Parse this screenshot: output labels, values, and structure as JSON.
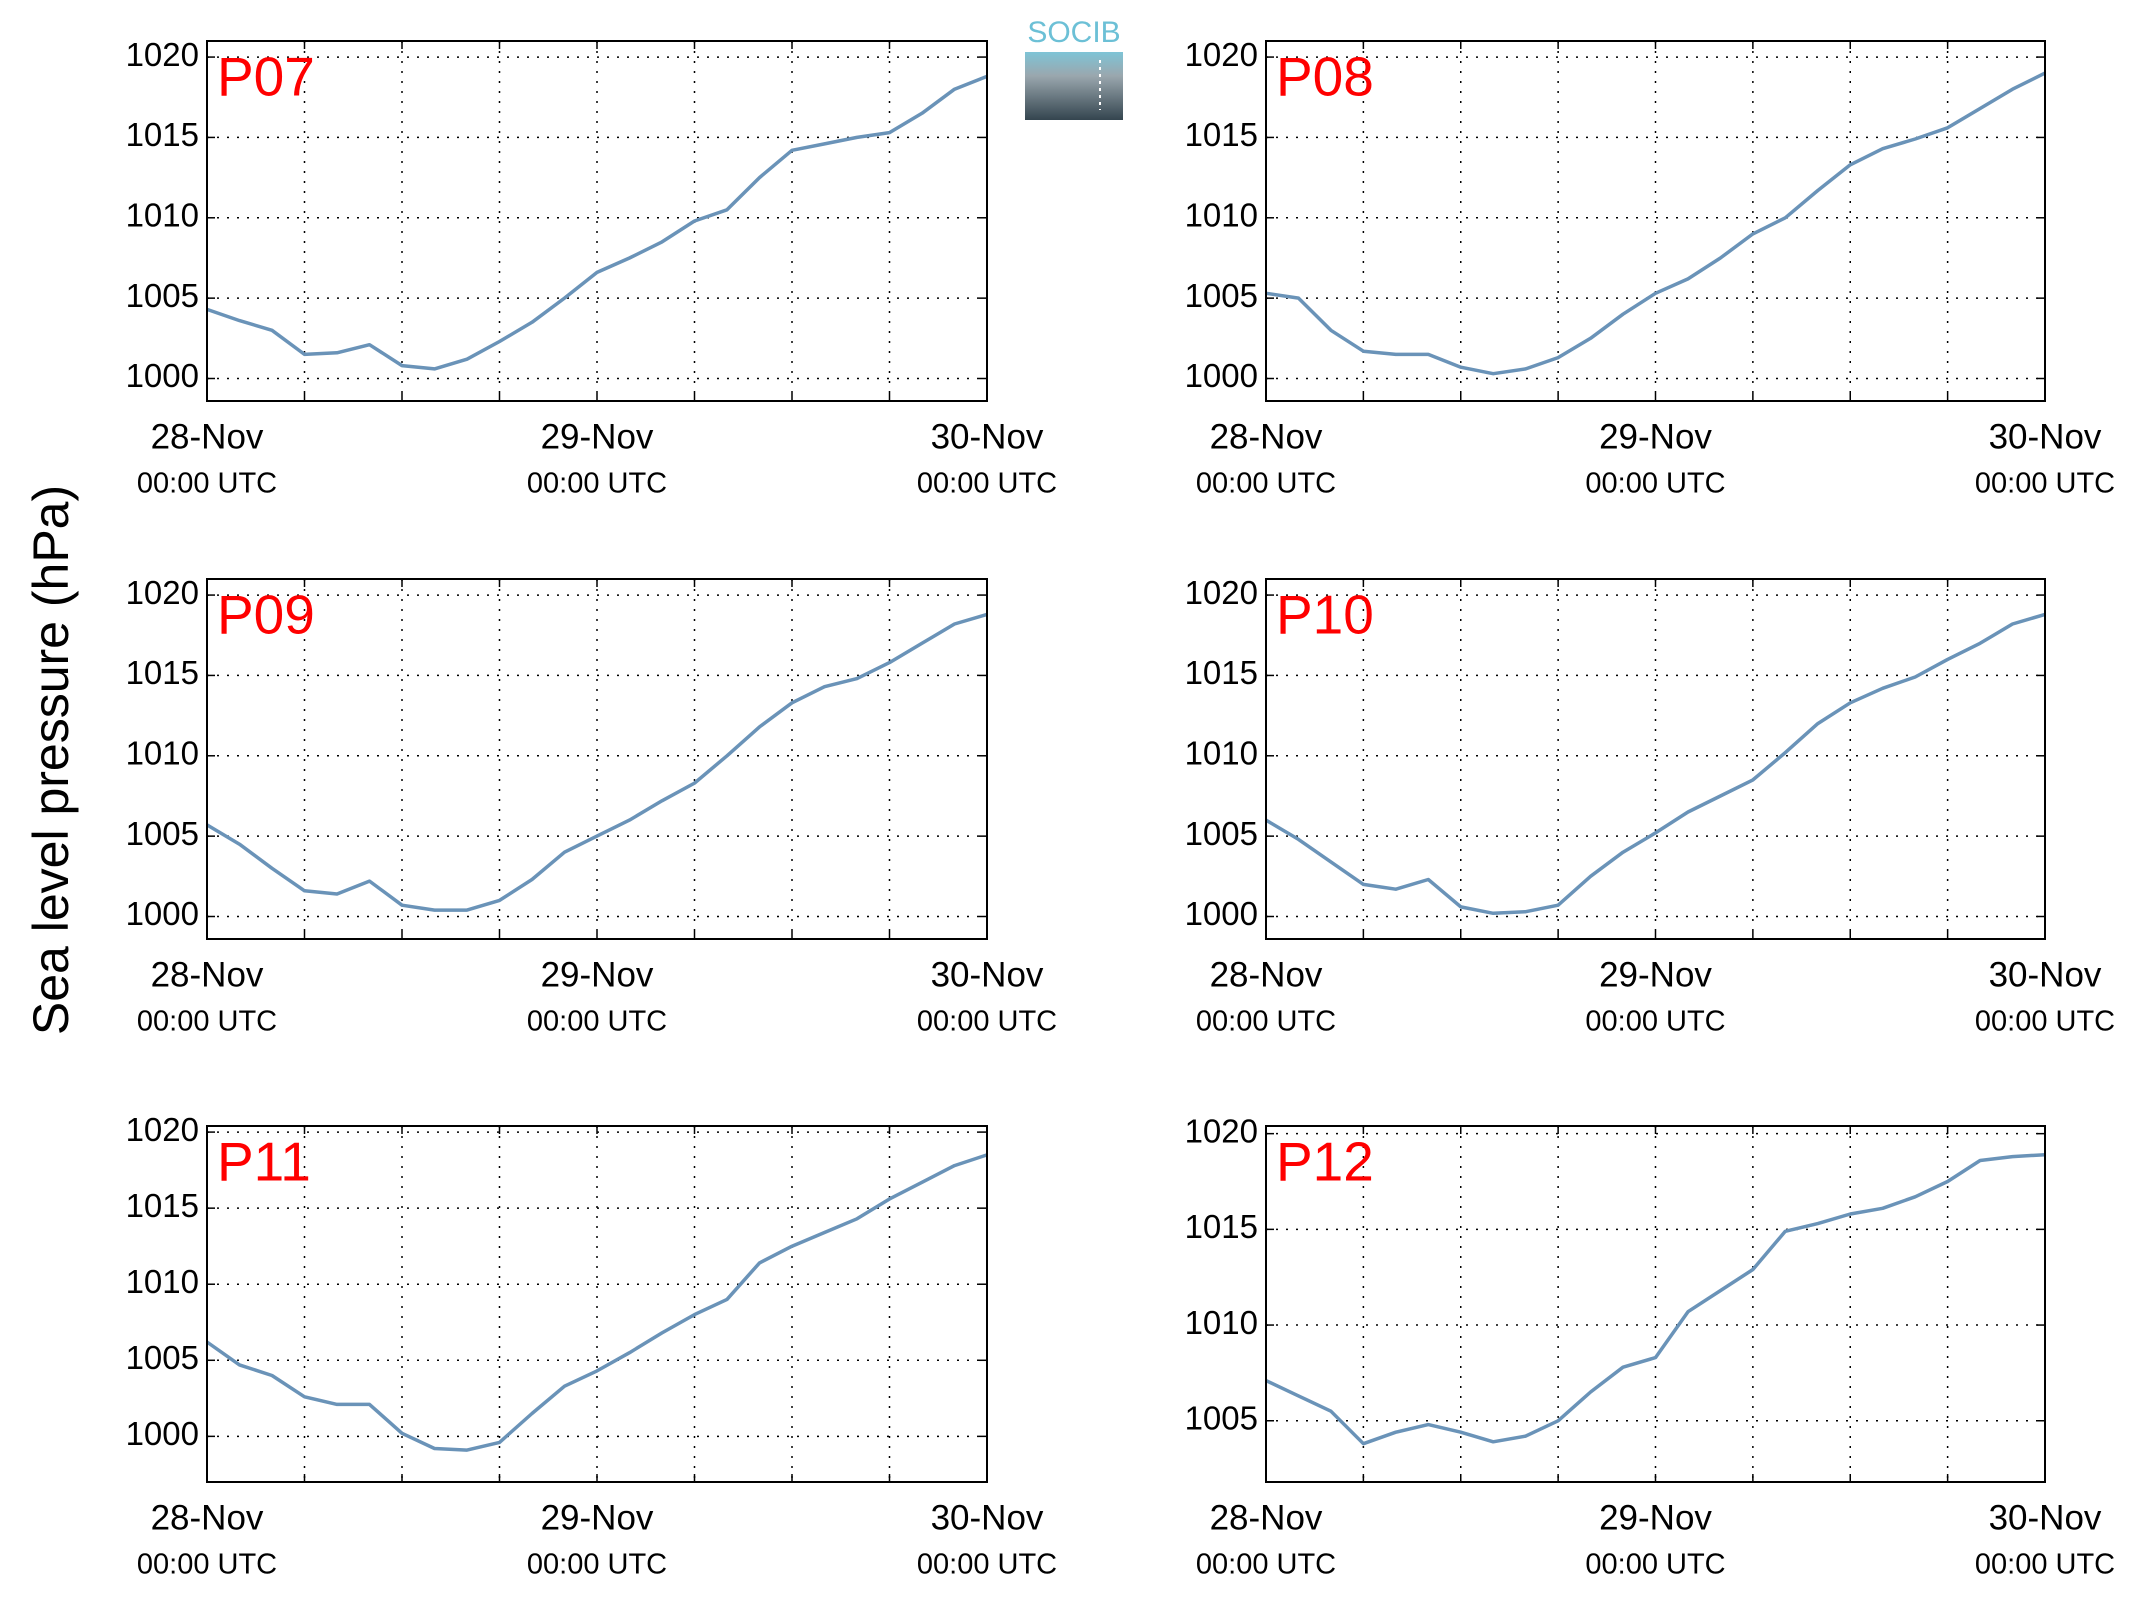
{
  "figure": {
    "ylabel": "Sea level pressure (hPa)",
    "logo": "SOCIB"
  },
  "chart_data": [
    {
      "type": "line",
      "title": "P07",
      "title_color": "#ff0000",
      "color": "#6a93b8",
      "grid": true,
      "x": [
        0,
        2,
        4,
        6,
        8,
        10,
        12,
        14,
        16,
        18,
        20,
        22,
        24,
        26,
        28,
        30,
        32,
        34,
        36,
        38,
        40,
        42,
        44,
        46,
        48
      ],
      "values": [
        1004.3,
        1003.6,
        1003,
        1001.5,
        1001.6,
        1002.1,
        1000.8,
        1000.6,
        1001.2,
        1002.3,
        1003.5,
        1005,
        1006.6,
        1007.5,
        1008.5,
        1009.8,
        1010.5,
        1012.5,
        1014.2,
        1014.6,
        1015,
        1015.3,
        1016.5,
        1018,
        1018.8
      ],
      "xlim": [
        0,
        48
      ],
      "ylim": [
        998.6,
        1021
      ],
      "xticks": [
        {
          "value": 0,
          "label": [
            "28-Nov",
            "00:00 UTC"
          ]
        },
        {
          "value": 6,
          "label": null
        },
        {
          "value": 12,
          "label": null
        },
        {
          "value": 18,
          "label": null
        },
        {
          "value": 24,
          "label": [
            "29-Nov",
            "00:00 UTC"
          ]
        },
        {
          "value": 30,
          "label": null
        },
        {
          "value": 36,
          "label": null
        },
        {
          "value": 42,
          "label": null
        },
        {
          "value": 48,
          "label": [
            "30-Nov",
            "00:00 UTC"
          ]
        }
      ],
      "yticks": [
        1000,
        1005,
        1010,
        1015,
        1020
      ]
    },
    {
      "type": "line",
      "title": "P08",
      "title_color": "#ff0000",
      "color": "#6a93b8",
      "grid": true,
      "x": [
        0,
        2,
        4,
        6,
        8,
        10,
        12,
        14,
        16,
        18,
        20,
        22,
        24,
        26,
        28,
        30,
        32,
        34,
        36,
        38,
        40,
        42,
        44,
        46,
        48
      ],
      "values": [
        1005.3,
        1005,
        1003,
        1001.7,
        1001.5,
        1001.5,
        1000.7,
        1000.3,
        1000.6,
        1001.3,
        1002.5,
        1004,
        1005.3,
        1006.2,
        1007.5,
        1009,
        1010,
        1011.7,
        1013.3,
        1014.3,
        1014.9,
        1015.6,
        1016.8,
        1018,
        1019
      ],
      "xlim": [
        0,
        48
      ],
      "ylim": [
        998.6,
        1021
      ],
      "xticks": [
        {
          "value": 0,
          "label": [
            "28-Nov",
            "00:00 UTC"
          ]
        },
        {
          "value": 6,
          "label": null
        },
        {
          "value": 12,
          "label": null
        },
        {
          "value": 18,
          "label": null
        },
        {
          "value": 24,
          "label": [
            "29-Nov",
            "00:00 UTC"
          ]
        },
        {
          "value": 30,
          "label": null
        },
        {
          "value": 36,
          "label": null
        },
        {
          "value": 42,
          "label": null
        },
        {
          "value": 48,
          "label": [
            "30-Nov",
            "00:00 UTC"
          ]
        }
      ],
      "yticks": [
        1000,
        1005,
        1010,
        1015,
        1020
      ]
    },
    {
      "type": "line",
      "title": "P09",
      "title_color": "#ff0000",
      "color": "#6a93b8",
      "grid": true,
      "x": [
        0,
        2,
        4,
        6,
        8,
        10,
        12,
        14,
        16,
        18,
        20,
        22,
        24,
        26,
        28,
        30,
        32,
        34,
        36,
        38,
        40,
        42,
        44,
        46,
        48
      ],
      "values": [
        1005.7,
        1004.5,
        1003,
        1001.6,
        1001.4,
        1002.2,
        1000.7,
        1000.4,
        1000.4,
        1001,
        1002.3,
        1004,
        1005,
        1006,
        1007.2,
        1008.3,
        1010,
        1011.8,
        1013.3,
        1014.3,
        1014.8,
        1015.8,
        1017,
        1018.2,
        1018.8
      ],
      "xlim": [
        0,
        48
      ],
      "ylim": [
        998.6,
        1021
      ],
      "xticks": [
        {
          "value": 0,
          "label": [
            "28-Nov",
            "00:00 UTC"
          ]
        },
        {
          "value": 6,
          "label": null
        },
        {
          "value": 12,
          "label": null
        },
        {
          "value": 18,
          "label": null
        },
        {
          "value": 24,
          "label": [
            "29-Nov",
            "00:00 UTC"
          ]
        },
        {
          "value": 30,
          "label": null
        },
        {
          "value": 36,
          "label": null
        },
        {
          "value": 42,
          "label": null
        },
        {
          "value": 48,
          "label": [
            "30-Nov",
            "00:00 UTC"
          ]
        }
      ],
      "yticks": [
        1000,
        1005,
        1010,
        1015,
        1020
      ]
    },
    {
      "type": "line",
      "title": "P10",
      "title_color": "#ff0000",
      "color": "#6a93b8",
      "grid": true,
      "x": [
        0,
        2,
        4,
        6,
        8,
        10,
        12,
        14,
        16,
        18,
        20,
        22,
        24,
        26,
        28,
        30,
        32,
        34,
        36,
        38,
        40,
        42,
        44,
        46,
        48
      ],
      "values": [
        1006,
        1004.8,
        1003.4,
        1002,
        1001.7,
        1002.3,
        1000.6,
        1000.2,
        1000.3,
        1000.7,
        1002.5,
        1004,
        1005.2,
        1006.5,
        1007.5,
        1008.5,
        1010.2,
        1012,
        1013.3,
        1014.2,
        1014.9,
        1016,
        1017,
        1018.2,
        1018.8
      ],
      "xlim": [
        0,
        48
      ],
      "ylim": [
        998.6,
        1021
      ],
      "xticks": [
        {
          "value": 0,
          "label": [
            "28-Nov",
            "00:00 UTC"
          ]
        },
        {
          "value": 6,
          "label": null
        },
        {
          "value": 12,
          "label": null
        },
        {
          "value": 18,
          "label": null
        },
        {
          "value": 24,
          "label": [
            "29-Nov",
            "00:00 UTC"
          ]
        },
        {
          "value": 30,
          "label": null
        },
        {
          "value": 36,
          "label": null
        },
        {
          "value": 42,
          "label": null
        },
        {
          "value": 48,
          "label": [
            "30-Nov",
            "00:00 UTC"
          ]
        }
      ],
      "yticks": [
        1000,
        1005,
        1010,
        1015,
        1020
      ]
    },
    {
      "type": "line",
      "title": "P11",
      "title_color": "#ff0000",
      "color": "#6a93b8",
      "grid": true,
      "x": [
        0,
        2,
        4,
        6,
        8,
        10,
        12,
        14,
        16,
        18,
        20,
        22,
        24,
        26,
        28,
        30,
        32,
        34,
        36,
        38,
        40,
        42,
        44,
        46,
        48
      ],
      "values": [
        1006.2,
        1004.7,
        1004,
        1002.6,
        1002.1,
        1002.1,
        1000.2,
        999.2,
        999.1,
        999.6,
        1001.5,
        1003.3,
        1004.3,
        1005.5,
        1006.8,
        1008,
        1009,
        1011.4,
        1012.5,
        1013.4,
        1014.3,
        1015.6,
        1016.7,
        1017.8,
        1018.5
      ],
      "xlim": [
        0,
        48
      ],
      "ylim": [
        997,
        1020.4
      ],
      "xticks": [
        {
          "value": 0,
          "label": [
            "28-Nov",
            "00:00 UTC"
          ]
        },
        {
          "value": 6,
          "label": null
        },
        {
          "value": 12,
          "label": null
        },
        {
          "value": 18,
          "label": null
        },
        {
          "value": 24,
          "label": [
            "29-Nov",
            "00:00 UTC"
          ]
        },
        {
          "value": 30,
          "label": null
        },
        {
          "value": 36,
          "label": null
        },
        {
          "value": 42,
          "label": null
        },
        {
          "value": 48,
          "label": [
            "30-Nov",
            "00:00 UTC"
          ]
        }
      ],
      "yticks": [
        1000,
        1005,
        1010,
        1015,
        1020
      ]
    },
    {
      "type": "line",
      "title": "P12",
      "title_color": "#ff0000",
      "color": "#6a93b8",
      "grid": true,
      "x": [
        0,
        2,
        4,
        6,
        8,
        10,
        12,
        14,
        16,
        18,
        20,
        22,
        24,
        26,
        28,
        30,
        32,
        34,
        36,
        38,
        40,
        42,
        44,
        46,
        48
      ],
      "values": [
        1007.1,
        1006.3,
        1005.5,
        1003.8,
        1004.4,
        1004.8,
        1004.4,
        1003.9,
        1004.2,
        1005,
        1006.5,
        1007.8,
        1008.3,
        1010.7,
        1011.8,
        1012.9,
        1014.9,
        1015.3,
        1015.8,
        1016.1,
        1016.7,
        1017.5,
        1018.6,
        1018.8,
        1018.9
      ],
      "xlim": [
        0,
        48
      ],
      "ylim": [
        1001.8,
        1020.4
      ],
      "xticks": [
        {
          "value": 0,
          "label": [
            "28-Nov",
            "00:00 UTC"
          ]
        },
        {
          "value": 6,
          "label": null
        },
        {
          "value": 12,
          "label": null
        },
        {
          "value": 18,
          "label": null
        },
        {
          "value": 24,
          "label": [
            "29-Nov",
            "00:00 UTC"
          ]
        },
        {
          "value": 30,
          "label": null
        },
        {
          "value": 36,
          "label": null
        },
        {
          "value": 42,
          "label": null
        },
        {
          "value": 48,
          "label": [
            "30-Nov",
            "00:00 UTC"
          ]
        }
      ],
      "yticks": [
        1005,
        1010,
        1015,
        1020
      ]
    }
  ]
}
